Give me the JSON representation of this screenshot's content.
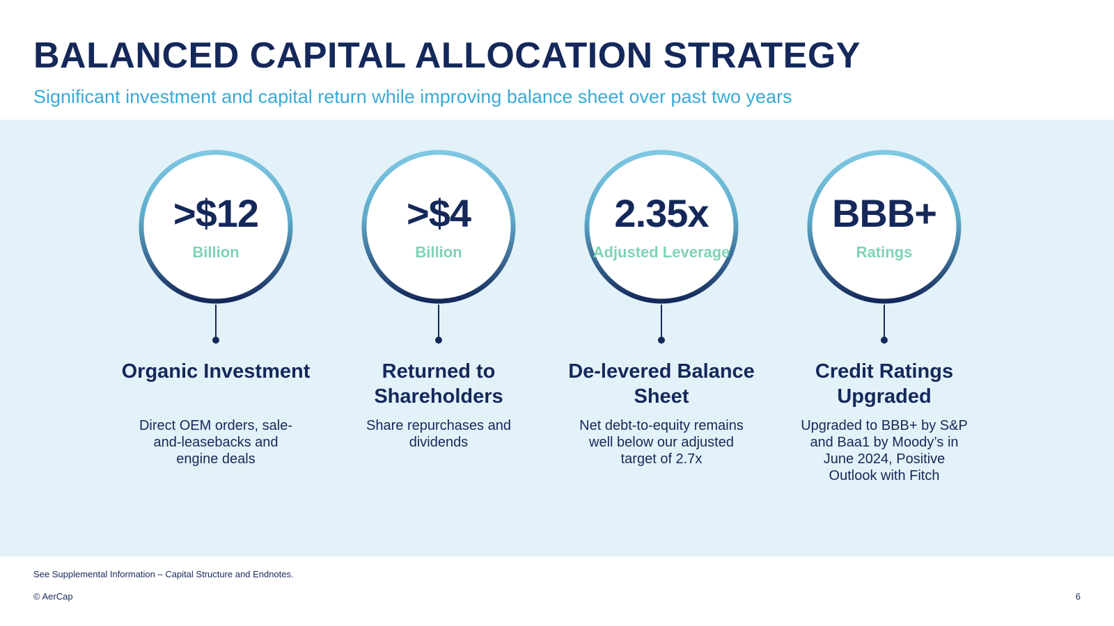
{
  "header": {
    "title": "BALANCED CAPITAL ALLOCATION STRATEGY",
    "subtitle": "Significant investment and capital return while improving balance sheet over past two years"
  },
  "colors": {
    "navy": "#14285a",
    "sky_blue": "#3aa9d6",
    "mint": "#7fd3b4",
    "ring_top": "#7ec8e3",
    "ring_bottom": "#14285a",
    "panel_bg": "#e3f2f8"
  },
  "items": [
    {
      "value": ">$12",
      "unit": "Billion",
      "heading": "Organic Investment",
      "description": "Direct OEM orders, sale-and-leasebacks and engine deals"
    },
    {
      "value": ">$4",
      "unit": "Billion",
      "heading": "Returned to Shareholders",
      "description": "Share repurchases and dividends"
    },
    {
      "value": "2.35x",
      "unit": "Adjusted Leverage",
      "heading": "De-levered Balance Sheet",
      "description": "Net debt-to-equity remains well below our adjusted target of 2.7x"
    },
    {
      "value": "BBB+",
      "unit": "Ratings",
      "heading": "Credit Ratings Upgraded",
      "description": "Upgraded to BBB+ by S&P and Baa1 by Moody’s in June 2024, Positive Outlook with Fitch"
    }
  ],
  "footer": {
    "note": "See Supplemental Information – Capital Structure and Endnotes.",
    "copyright": "© AerCap",
    "page_number": "6"
  }
}
